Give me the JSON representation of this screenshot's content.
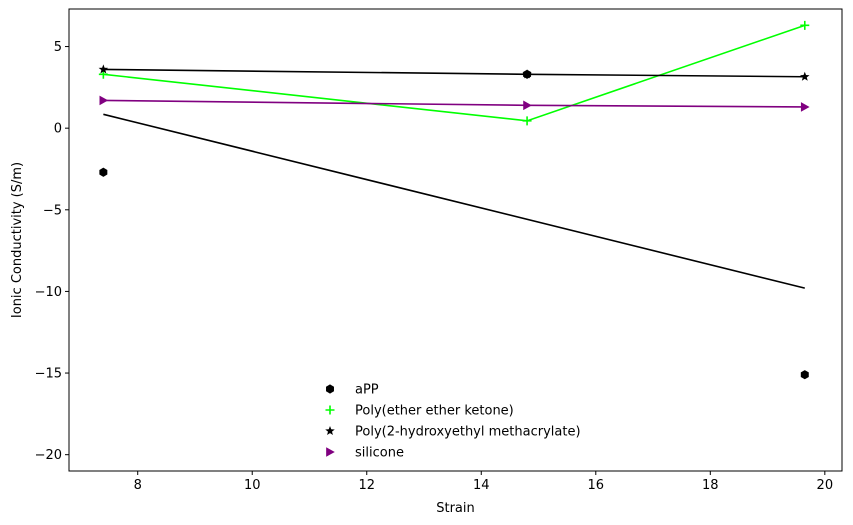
{
  "chart_data": {
    "type": "scatter",
    "title": "",
    "xlabel": "Strain",
    "ylabel": "Ionic Conductivity (S/m)",
    "xlim": [
      6.8,
      20.3
    ],
    "ylim": [
      -21,
      7.3
    ],
    "xticks": [
      8,
      10,
      12,
      14,
      16,
      18,
      20
    ],
    "yticks": [
      -20,
      -15,
      -10,
      -5,
      0,
      5
    ],
    "xtick_labels": [
      "8",
      "10",
      "12",
      "14",
      "16",
      "18",
      "20"
    ],
    "ytick_labels": [
      "−20",
      "−15",
      "−10",
      "−5",
      "0",
      "5"
    ],
    "grid": false,
    "legend_position": "lower-center",
    "series": [
      {
        "name": "aPP",
        "marker": "hexagon",
        "color": "#000000",
        "x": [
          7.4,
          14.8,
          19.65
        ],
        "y": [
          -2.7,
          3.3,
          -15.1
        ],
        "fit_line": {
          "x": [
            7.4,
            19.65
          ],
          "y": [
            0.85,
            -9.8
          ],
          "color": "#000000"
        }
      },
      {
        "name": "Poly(ether ether ketone)",
        "marker": "plus",
        "color": "#00ff00",
        "x": [
          7.4,
          14.8,
          19.65
        ],
        "y": [
          3.3,
          0.45,
          6.3
        ],
        "line": true
      },
      {
        "name": "Poly(2-hydroxyethyl methacrylate)",
        "marker": "star",
        "color": "#000000",
        "x": [
          7.4,
          14.8,
          19.65
        ],
        "y": [
          3.6,
          3.3,
          3.15
        ],
        "line": true
      },
      {
        "name": "silicone",
        "marker": "triangle-right",
        "color": "#800080",
        "x": [
          7.4,
          14.8,
          19.65
        ],
        "y": [
          1.7,
          1.4,
          1.3
        ],
        "line": true
      }
    ]
  }
}
